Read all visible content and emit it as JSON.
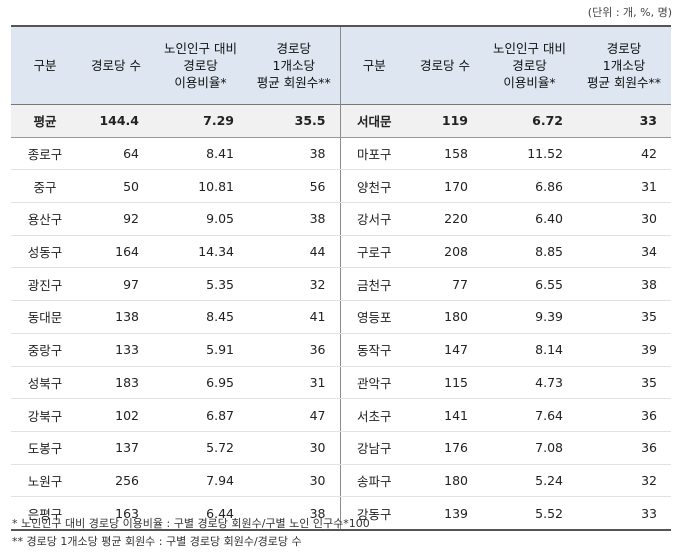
{
  "unit_label": "(단위 : 개, %, 명)",
  "headers": {
    "district": "구분",
    "count": "경로당 수",
    "rate": "노인인구 대비\n경로당\n이용비율*",
    "members": "경로당\n1개소당\n평균 회원수**"
  },
  "left_rows": [
    {
      "name": "평균",
      "count": "144.4",
      "rate": "7.29",
      "members": "35.5"
    },
    {
      "name": "종로구",
      "count": "64",
      "rate": "8.41",
      "members": "38"
    },
    {
      "name": "중구",
      "count": "50",
      "rate": "10.81",
      "members": "56"
    },
    {
      "name": "용산구",
      "count": "92",
      "rate": "9.05",
      "members": "38"
    },
    {
      "name": "성동구",
      "count": "164",
      "rate": "14.34",
      "members": "44"
    },
    {
      "name": "광진구",
      "count": "97",
      "rate": "5.35",
      "members": "32"
    },
    {
      "name": "동대문",
      "count": "138",
      "rate": "8.45",
      "members": "41"
    },
    {
      "name": "중랑구",
      "count": "133",
      "rate": "5.91",
      "members": "36"
    },
    {
      "name": "성북구",
      "count": "183",
      "rate": "6.95",
      "members": "31"
    },
    {
      "name": "강북구",
      "count": "102",
      "rate": "6.87",
      "members": "47"
    },
    {
      "name": "도봉구",
      "count": "137",
      "rate": "5.72",
      "members": "30"
    },
    {
      "name": "노원구",
      "count": "256",
      "rate": "7.94",
      "members": "30"
    },
    {
      "name": "은평구",
      "count": "163",
      "rate": "6.44",
      "members": "38"
    }
  ],
  "right_rows": [
    {
      "name": "서대문",
      "count": "119",
      "rate": "6.72",
      "members": "33"
    },
    {
      "name": "마포구",
      "count": "158",
      "rate": "11.52",
      "members": "42"
    },
    {
      "name": "양천구",
      "count": "170",
      "rate": "6.86",
      "members": "31"
    },
    {
      "name": "강서구",
      "count": "220",
      "rate": "6.40",
      "members": "30"
    },
    {
      "name": "구로구",
      "count": "208",
      "rate": "8.85",
      "members": "34"
    },
    {
      "name": "금천구",
      "count": "77",
      "rate": "6.55",
      "members": "38"
    },
    {
      "name": "영등포",
      "count": "180",
      "rate": "9.39",
      "members": "35"
    },
    {
      "name": "동작구",
      "count": "147",
      "rate": "8.14",
      "members": "39"
    },
    {
      "name": "관악구",
      "count": "115",
      "rate": "4.73",
      "members": "35"
    },
    {
      "name": "서초구",
      "count": "141",
      "rate": "7.64",
      "members": "36"
    },
    {
      "name": "강남구",
      "count": "176",
      "rate": "7.08",
      "members": "36"
    },
    {
      "name": "송파구",
      "count": "180",
      "rate": "5.24",
      "members": "32"
    },
    {
      "name": "강동구",
      "count": "139",
      "rate": "5.52",
      "members": "33"
    }
  ],
  "notes": [
    "* 노인인구 대비 경로당 이용비율 : 구별 경로당 회원수/구별 노인 인구수*100",
    "** 경로당 1개소당 평균 회원수 : 구별 경로당 회원수/경로당 수"
  ]
}
